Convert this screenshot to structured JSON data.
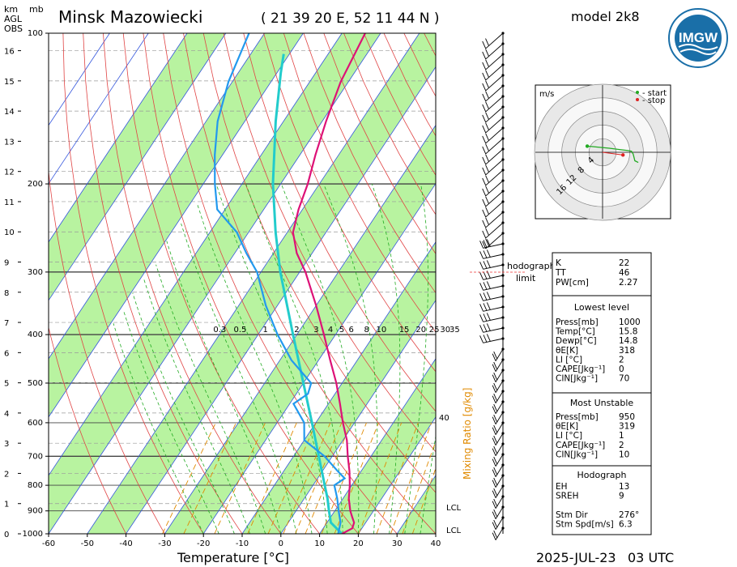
{
  "header": {
    "station": "Minsk Mazowiecki",
    "coords": "( 21 39 20 E, 52 11 44 N )",
    "model": "model 2k8",
    "logo_text": "IMGW",
    "date": "2025-JUL-23",
    "time": "03 UTC"
  },
  "axes": {
    "left_labels": [
      "km",
      "AGL",
      "OBS",
      "mb"
    ],
    "xlabel": "Temperature [°C]",
    "mixing_ratio_label": "Mixing Ratio [g/kg]",
    "x_ticks": [
      -60,
      -50,
      -40,
      -30,
      -20,
      -10,
      0,
      10,
      20,
      30,
      40
    ],
    "p_ticks": [
      100,
      200,
      300,
      400,
      500,
      600,
      700,
      800,
      900,
      1000
    ],
    "km_ticks": [
      0,
      1,
      2,
      3,
      4,
      5,
      6,
      7,
      8,
      9,
      10,
      11,
      12,
      13,
      14,
      15,
      16
    ],
    "mixing_ratio_ticks": [
      "0.3",
      "0.5",
      "1",
      "2",
      "3",
      "4",
      "5",
      "6",
      "8",
      "10",
      "15",
      "20",
      "25",
      "30",
      "35"
    ],
    "lcl_label": "LCL",
    "el_label": "40",
    "hodograph_limit_label": [
      "hodograph",
      "limit"
    ]
  },
  "hodograph": {
    "unit": "m/s",
    "legend_start": "- start",
    "legend_stop": "- stop",
    "ring_labels": [
      "4",
      "8",
      "12",
      "16"
    ],
    "start_color": "#22aa22",
    "stop_color": "#dd2222",
    "points": [
      [
        -4.5,
        1.8
      ],
      [
        2,
        1.2
      ],
      [
        5,
        0.8
      ],
      [
        7.5,
        0.5
      ],
      [
        8.5,
        0.3
      ],
      [
        9.0,
        -0.5
      ],
      [
        9.5,
        -2.5
      ],
      [
        10.5,
        -3.0
      ]
    ]
  },
  "tables": {
    "indices": {
      "rows": [
        [
          "K",
          "22"
        ],
        [
          "TT",
          "46"
        ],
        [
          "PW[cm]",
          "2.27"
        ]
      ]
    },
    "lowest": {
      "title": "Lowest level",
      "rows": [
        [
          "Press[mb]",
          "1000"
        ],
        [
          "Temp[°C]",
          "15.8"
        ],
        [
          "Dewp[°C]",
          "14.8"
        ],
        [
          "θE[K]",
          "318"
        ],
        [
          "LI [°C]",
          "2"
        ],
        [
          "CAPE[Jkg⁻¹]",
          "0"
        ],
        [
          "CIN[Jkg⁻¹]",
          "70"
        ]
      ]
    },
    "unstable": {
      "title": "Most Unstable",
      "rows": [
        [
          "Press[mb]",
          "950"
        ],
        [
          "θE[K]",
          "319"
        ],
        [
          "LI [°C]",
          "1"
        ],
        [
          "CAPE[Jkg⁻¹]",
          "2"
        ],
        [
          "CIN[Jkg⁻¹]",
          "10"
        ]
      ]
    },
    "hodo": {
      "title": "Hodograph",
      "rows": [
        [
          "EH",
          "13"
        ],
        [
          "SREH",
          "9"
        ],
        [
          "",
          ""
        ],
        [
          "Stm Dir",
          "276°"
        ],
        [
          "Stm Spd[m/s]",
          "6.3"
        ]
      ]
    }
  },
  "chart_data": {
    "type": "skew-t",
    "x_unit": "°C",
    "xlim": [
      -60,
      40
    ],
    "plim": [
      1000,
      100
    ],
    "temperature": [
      [
        1000,
        15.8
      ],
      [
        975,
        17.5
      ],
      [
        950,
        17.0
      ],
      [
        925,
        15.5
      ],
      [
        900,
        14.0
      ],
      [
        850,
        11.5
      ],
      [
        800,
        9.5
      ],
      [
        750,
        7.0
      ],
      [
        700,
        4.0
      ],
      [
        650,
        1.0
      ],
      [
        600,
        -3.0
      ],
      [
        550,
        -7.0
      ],
      [
        500,
        -11.5
      ],
      [
        450,
        -17.0
      ],
      [
        400,
        -23.0
      ],
      [
        350,
        -30.0
      ],
      [
        300,
        -38.5
      ],
      [
        275,
        -44.0
      ],
      [
        250,
        -48.5
      ],
      [
        225,
        -51.0
      ],
      [
        200,
        -53.0
      ],
      [
        175,
        -56.0
      ],
      [
        150,
        -59.0
      ],
      [
        125,
        -62.0
      ],
      [
        100,
        -64.0
      ]
    ],
    "dewpoint": [
      [
        1000,
        14.8
      ],
      [
        950,
        13.5
      ],
      [
        900,
        11.0
      ],
      [
        850,
        8.5
      ],
      [
        800,
        5.5
      ],
      [
        775,
        7.0
      ],
      [
        750,
        4.0
      ],
      [
        700,
        -2.0
      ],
      [
        650,
        -10.0
      ],
      [
        600,
        -13.0
      ],
      [
        550,
        -19.0
      ],
      [
        525,
        -17.0
      ],
      [
        500,
        -18.0
      ],
      [
        450,
        -27.0
      ],
      [
        400,
        -35.0
      ],
      [
        350,
        -43.0
      ],
      [
        300,
        -51.0
      ],
      [
        275,
        -57.0
      ],
      [
        250,
        -63.0
      ],
      [
        225,
        -72.0
      ],
      [
        200,
        -77.0
      ],
      [
        175,
        -82.0
      ],
      [
        150,
        -87.0
      ],
      [
        125,
        -91.0
      ],
      [
        100,
        -94.0
      ]
    ],
    "parcel": [
      [
        1000,
        15.8
      ],
      [
        950,
        11.0
      ],
      [
        900,
        8.5
      ],
      [
        850,
        6.0
      ],
      [
        800,
        3.0
      ],
      [
        700,
        -3.5
      ],
      [
        600,
        -11.0
      ],
      [
        500,
        -20.0
      ],
      [
        400,
        -31.0
      ],
      [
        300,
        -45.0
      ],
      [
        250,
        -53.0
      ],
      [
        200,
        -62.0
      ],
      [
        150,
        -72.0
      ],
      [
        120,
        -79.0
      ],
      [
        110,
        -81.5
      ]
    ]
  }
}
